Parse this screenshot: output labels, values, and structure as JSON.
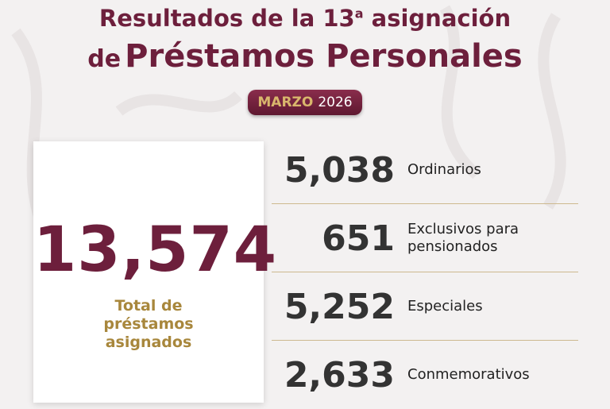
{
  "header": {
    "line1": {
      "prefix": "Resultados de la",
      "number": "13",
      "ordinal": "a",
      "suffix": "asignación"
    },
    "line2": {
      "prefix": "de",
      "main": "Préstamos Personales"
    },
    "badge": {
      "month": "MARZO",
      "year": "2026"
    }
  },
  "total": {
    "value": "13,574",
    "label": "Total de préstamos asignados"
  },
  "items": [
    {
      "value": "5,038",
      "label": "Ordinarios"
    },
    {
      "value": "651",
      "label": "Exclusivos para pensionados"
    },
    {
      "value": "5,252",
      "label": "Especiales"
    },
    {
      "value": "2,633",
      "label": "Conmemorativos"
    }
  ]
}
